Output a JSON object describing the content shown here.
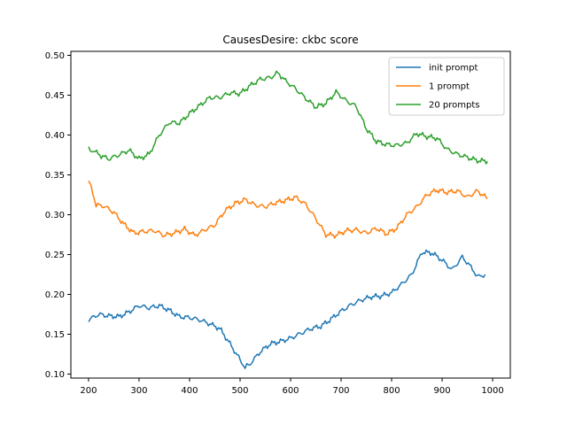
{
  "chart_data": {
    "type": "line",
    "title": "CausesDesire: ckbc score",
    "xlabel": "",
    "ylabel": "",
    "xlim": [
      165,
      1035
    ],
    "ylim": [
      0.095,
      0.505
    ],
    "x_ticks": [
      200,
      300,
      400,
      500,
      600,
      700,
      800,
      900,
      1000
    ],
    "y_ticks": [
      0.1,
      0.15,
      0.2,
      0.25,
      0.3,
      0.35,
      0.4,
      0.45,
      0.5
    ],
    "y_tick_labels": [
      "0.10",
      "0.15",
      "0.20",
      "0.25",
      "0.30",
      "0.35",
      "0.40",
      "0.45",
      "0.50"
    ],
    "grid": false,
    "legend_position": "top-right",
    "series": [
      {
        "name": "init prompt",
        "color": "#1f77b4",
        "x": [
          200,
          220,
          240,
          260,
          280,
          300,
          320,
          340,
          360,
          380,
          400,
          420,
          440,
          460,
          480,
          500,
          510,
          520,
          540,
          560,
          580,
          600,
          620,
          640,
          660,
          680,
          700,
          720,
          740,
          760,
          780,
          800,
          820,
          840,
          860,
          880,
          900,
          920,
          940,
          960,
          970,
          985
        ],
        "y": [
          0.168,
          0.175,
          0.173,
          0.172,
          0.178,
          0.186,
          0.183,
          0.186,
          0.18,
          0.172,
          0.171,
          0.168,
          0.163,
          0.157,
          0.138,
          0.118,
          0.108,
          0.113,
          0.128,
          0.138,
          0.141,
          0.145,
          0.151,
          0.157,
          0.16,
          0.169,
          0.179,
          0.187,
          0.193,
          0.197,
          0.198,
          0.202,
          0.213,
          0.225,
          0.253,
          0.252,
          0.243,
          0.231,
          0.247,
          0.232,
          0.222,
          0.225
        ]
      },
      {
        "name": "1 prompt",
        "color": "#ff7f0e",
        "x": [
          200,
          205,
          215,
          230,
          250,
          270,
          290,
          310,
          330,
          350,
          370,
          390,
          410,
          430,
          450,
          470,
          490,
          510,
          530,
          550,
          570,
          590,
          610,
          630,
          650,
          670,
          690,
          710,
          730,
          750,
          770,
          790,
          810,
          830,
          850,
          870,
          890,
          910,
          930,
          950,
          970,
          990
        ],
        "y": [
          0.341,
          0.335,
          0.312,
          0.311,
          0.303,
          0.288,
          0.277,
          0.279,
          0.28,
          0.274,
          0.277,
          0.282,
          0.274,
          0.281,
          0.287,
          0.305,
          0.314,
          0.319,
          0.312,
          0.31,
          0.315,
          0.318,
          0.322,
          0.313,
          0.295,
          0.275,
          0.274,
          0.28,
          0.281,
          0.277,
          0.283,
          0.276,
          0.283,
          0.3,
          0.31,
          0.325,
          0.331,
          0.328,
          0.33,
          0.322,
          0.33,
          0.32
        ]
      },
      {
        "name": "20 prompts",
        "color": "#2ca02c",
        "x": [
          200,
          210,
          225,
          240,
          260,
          280,
          300,
          320,
          340,
          360,
          380,
          400,
          420,
          440,
          460,
          480,
          500,
          520,
          540,
          560,
          575,
          590,
          610,
          630,
          650,
          670,
          690,
          710,
          730,
          750,
          770,
          790,
          810,
          830,
          850,
          870,
          890,
          910,
          930,
          950,
          970,
          990
        ],
        "y": [
          0.382,
          0.38,
          0.374,
          0.37,
          0.375,
          0.381,
          0.37,
          0.376,
          0.4,
          0.416,
          0.415,
          0.427,
          0.437,
          0.447,
          0.447,
          0.453,
          0.452,
          0.462,
          0.47,
          0.472,
          0.478,
          0.468,
          0.458,
          0.446,
          0.435,
          0.44,
          0.454,
          0.443,
          0.436,
          0.408,
          0.392,
          0.388,
          0.387,
          0.39,
          0.402,
          0.398,
          0.396,
          0.382,
          0.376,
          0.372,
          0.368,
          0.367
        ]
      }
    ]
  }
}
